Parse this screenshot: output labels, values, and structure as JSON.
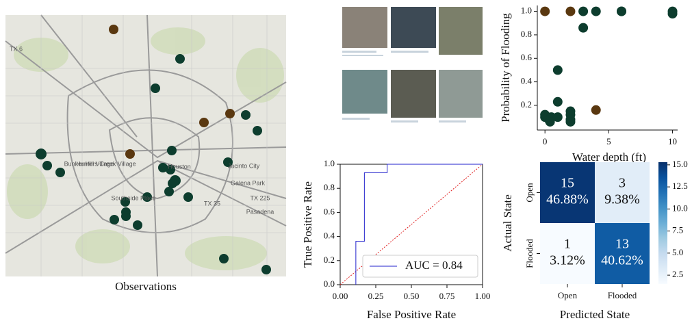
{
  "map": {
    "caption": "Observations",
    "labels": [
      "Bunker Hill Village",
      "Hunters Creek Village",
      "Houston",
      "Jacinto City",
      "Galena Park",
      "Pasadena",
      "Southside Place",
      "TX 225",
      "TX 35",
      "TX 6"
    ]
  },
  "chart_data": [
    {
      "type": "scatter",
      "xlabel": "Water depth (ft)",
      "ylabel": "Probability of Flooding",
      "xlim": [
        -0.6,
        10.4
      ],
      "xticks": [
        0,
        5,
        10
      ],
      "ylim": [
        -0.01,
        1.05
      ],
      "yticks": [
        0.2,
        0.4,
        0.6,
        0.8,
        {
          "value": 1,
          "label": "1.0"
        }
      ],
      "series": [
        {
          "color": "#0d3d2e",
          "x": [
            3,
            4,
            6,
            6,
            10,
            10,
            3,
            1,
            1,
            0,
            0,
            0.3,
            0.5,
            1,
            2,
            2,
            2,
            2,
            0.4
          ],
          "values": [
            1,
            1,
            1,
            1,
            1,
            0.98,
            0.86,
            0.5,
            0.23,
            0.1,
            0.12,
            0.08,
            0.1,
            0.1,
            0.15,
            0.12,
            0.08,
            0.06,
            0.06
          ]
        },
        {
          "color": "#5a3810",
          "x": [
            0,
            2,
            4
          ],
          "values": [
            1,
            1,
            0.16
          ]
        }
      ]
    },
    {
      "type": "line",
      "xlabel": "False Positive Rate",
      "ylabel": "True Positive Rate",
      "xlim": [
        0,
        1
      ],
      "xticks": [
        {
          "value": 0,
          "label": "0.00"
        },
        0.25,
        {
          "value": 0.5,
          "label": "0.50"
        },
        0.75,
        {
          "value": 1,
          "label": "1.00"
        }
      ],
      "ylim": [
        0,
        1
      ],
      "yticks": [
        {
          "value": 0,
          "label": "0.0"
        },
        0.2,
        0.4,
        0.6,
        0.8,
        {
          "value": 1,
          "label": "1.0"
        }
      ],
      "legend": "lower right",
      "series": [
        {
          "name": "AUC = 0.84",
          "color": "#2222cc",
          "x": [
            0.11,
            0.11,
            0.17,
            0.17,
            0.33,
            0.33,
            1
          ],
          "values": [
            0,
            0.36,
            0.36,
            0.93,
            0.93,
            1,
            1
          ]
        }
      ]
    },
    {
      "type": "heatmap",
      "xlabel": "Predicted State",
      "ylabel": "Actual State",
      "categories": [
        "Open",
        "Flooded"
      ],
      "values": [
        [
          15,
          3
        ],
        [
          1,
          13
        ]
      ],
      "value_labels": [
        [
          "46.88%",
          "9.38%"
        ],
        [
          "3.12%",
          "40.62%"
        ]
      ],
      "clim": [
        1.5,
        15.3
      ],
      "cticks": [
        2.5,
        {
          "value": 5,
          "label": "5.0"
        },
        7.5,
        {
          "value": 10,
          "label": "10.0"
        },
        12.5,
        {
          "value": 15,
          "label": "15.0"
        }
      ],
      "colors": [
        "#f7fbff",
        "#deebf7",
        "#c6dbef",
        "#9ecae1",
        "#6baed6",
        "#4292c6",
        "#2171b5",
        "#08519c",
        "#08306b"
      ]
    }
  ]
}
